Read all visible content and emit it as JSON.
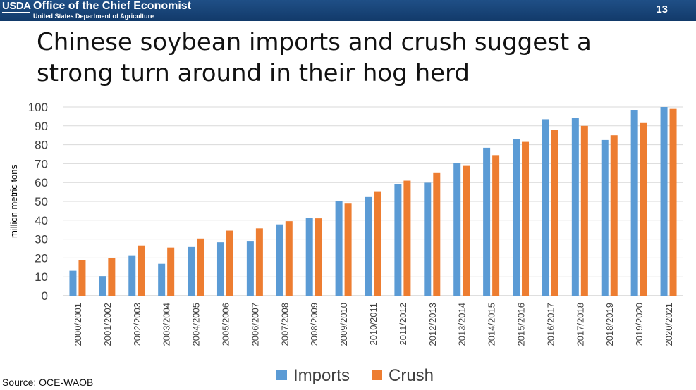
{
  "header": {
    "logo_text": "USDA",
    "office": "Office of the Chief Economist",
    "department": "United States Department of Agriculture",
    "page_number": "13",
    "background_color": "#1a4a80"
  },
  "title_line1": "Chinese soybean imports and crush suggest a",
  "title_line2": "strong turn around in their hog herd",
  "source": "Source: OCE-WAOB",
  "chart_data": {
    "type": "bar",
    "title": "",
    "xlabel": "",
    "ylabel": "million metric tons",
    "ylim": [
      0,
      100
    ],
    "ytick_step": 10,
    "grid": true,
    "legend_position": "bottom",
    "categories": [
      "2000/2001",
      "2001/2002",
      "2002/2003",
      "2003/2004",
      "2004/2005",
      "2005/2006",
      "2006/2007",
      "2007/2008",
      "2008/2009",
      "2009/2010",
      "2010/2011",
      "2011/2012",
      "2012/2013",
      "2013/2014",
      "2014/2015",
      "2015/2016",
      "2016/2017",
      "2017/2018",
      "2018/2019",
      "2019/2020",
      "2020/2021"
    ],
    "series": [
      {
        "name": "Imports",
        "color": "#5b9bd5",
        "values": [
          13.2,
          10.4,
          21.4,
          16.9,
          25.8,
          28.3,
          28.7,
          37.8,
          41.1,
          50.3,
          52.3,
          59.2,
          59.9,
          70.4,
          78.4,
          83.2,
          93.5,
          94.1,
          82.5,
          98.5,
          100.0
        ]
      },
      {
        "name": "Crush",
        "color": "#ed7d31",
        "values": [
          19.0,
          20.0,
          26.6,
          25.5,
          30.3,
          34.5,
          35.7,
          39.5,
          41.0,
          48.8,
          55.0,
          61.0,
          65.0,
          68.8,
          74.5,
          81.5,
          88.0,
          90.0,
          85.0,
          91.5,
          99.0
        ]
      }
    ]
  }
}
